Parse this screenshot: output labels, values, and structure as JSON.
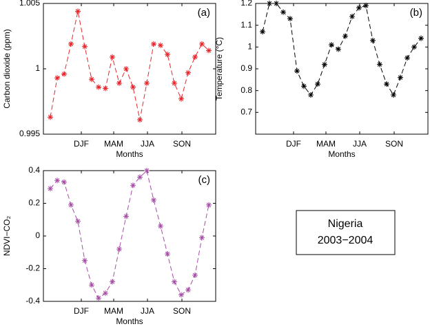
{
  "chart_data": [
    {
      "type": "line",
      "annotation": "(a)",
      "ylabel": "Carbon dioxide (ppm)",
      "xlabel": "Months",
      "x": [
        1,
        2,
        3,
        4,
        5,
        6,
        7,
        8,
        9,
        10,
        11,
        12,
        13,
        14,
        15,
        16,
        17,
        18,
        19,
        20,
        21,
        22,
        23,
        24
      ],
      "series": [
        {
          "color": "#e8242a",
          "values": [
            0.9963,
            0.9993,
            0.9996,
            1.0019,
            1.0044,
            1.0017,
            0.9992,
            0.9986,
            0.9985,
            1.0009,
            0.9989,
            1.0,
            0.9986,
            0.9961,
            0.9989,
            1.0019,
            1.0018,
            1.0011,
            0.9989,
            0.9977,
            0.9997,
            1.0009,
            1.0019,
            1.0014
          ]
        }
      ],
      "xlim": [
        0,
        25
      ],
      "xticks": [
        {
          "value": 5.5,
          "label": "DJF"
        },
        {
          "value": 10.2,
          "label": "MAM"
        },
        {
          "value": 15.1,
          "label": "JJA"
        },
        {
          "value": 20.1,
          "label": "SON"
        }
      ],
      "ylim": [
        0.995,
        1.005
      ],
      "yticks": [
        0.995,
        1,
        1.005
      ]
    },
    {
      "type": "line",
      "annotation": "(b)",
      "ylabel": "Temperature (°C)",
      "xlabel": "Months",
      "x": [
        1,
        2,
        3,
        4,
        5,
        6,
        7,
        8,
        9,
        10,
        11,
        12,
        13,
        14,
        15,
        16,
        17,
        18,
        19,
        20,
        21,
        22,
        23,
        24
      ],
      "series": [
        {
          "color": "#000000",
          "values": [
            1.07,
            1.2,
            1.2,
            1.16,
            1.13,
            0.89,
            0.82,
            0.78,
            0.83,
            0.92,
            1.01,
            0.99,
            1.05,
            1.14,
            1.18,
            1.19,
            1.03,
            0.92,
            0.83,
            0.78,
            0.86,
            0.95,
            1.0,
            1.04
          ]
        }
      ],
      "xlim": [
        0,
        25
      ],
      "xticks": [
        {
          "value": 5.5,
          "label": "DJF"
        },
        {
          "value": 10.2,
          "label": "MAM"
        },
        {
          "value": 15.1,
          "label": "JJA"
        },
        {
          "value": 20.1,
          "label": "SON"
        }
      ],
      "ylim": [
        0.6,
        1.2
      ],
      "yticks": [
        0.7,
        0.8,
        0.9,
        1,
        1.1,
        1.2
      ]
    },
    {
      "type": "line",
      "annotation": "(c)",
      "ylabel": "NDVI−CO₂",
      "xlabel": "Months",
      "x": [
        1,
        2,
        3,
        4,
        5,
        6,
        7,
        8,
        9,
        10,
        11,
        12,
        13,
        14,
        15,
        16,
        17,
        18,
        19,
        20,
        21,
        22,
        23,
        24
      ],
      "series": [
        {
          "color": "#a64ca6",
          "values": [
            0.29,
            0.34,
            0.33,
            0.19,
            0.09,
            -0.15,
            -0.3,
            -0.38,
            -0.35,
            -0.28,
            -0.08,
            0.12,
            0.31,
            0.36,
            0.4,
            0.22,
            0.06,
            -0.11,
            -0.28,
            -0.36,
            -0.33,
            -0.24,
            -0.01,
            0.19
          ]
        }
      ],
      "xlim": [
        0,
        25
      ],
      "xticks": [
        {
          "value": 5.5,
          "label": "DJF"
        },
        {
          "value": 10.2,
          "label": "MAM"
        },
        {
          "value": 15.1,
          "label": "JJA"
        },
        {
          "value": 20.1,
          "label": "SON"
        }
      ],
      "ylim": [
        -0.4,
        0.4
      ],
      "yticks": [
        -0.4,
        -0.2,
        0,
        0.2,
        0.4
      ]
    }
  ],
  "legend_box": {
    "lines": [
      "Nigeria",
      "2003−2004"
    ]
  }
}
